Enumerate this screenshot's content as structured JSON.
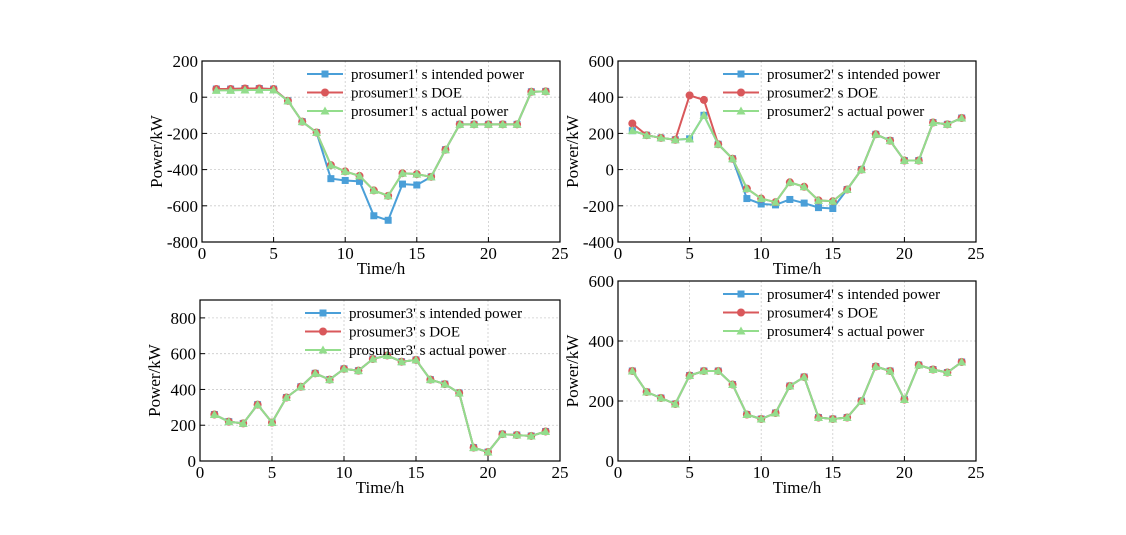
{
  "colors": {
    "intended": "#4a9fd8",
    "doe": "#d9585b",
    "actual": "#93dd8c",
    "grid": "#cccccc",
    "axis": "#000000"
  },
  "chart_data": [
    {
      "type": "line",
      "title": "",
      "xlabel": "Time/h",
      "ylabel": "Power/kW",
      "xlim": [
        0,
        25
      ],
      "ylim": [
        -800,
        200
      ],
      "xticks": [
        0,
        5,
        10,
        15,
        20,
        25
      ],
      "yticks": [
        -800,
        -600,
        -400,
        -200,
        0,
        200
      ],
      "x": [
        1,
        2,
        3,
        4,
        5,
        6,
        7,
        8,
        9,
        10,
        11,
        12,
        13,
        14,
        15,
        16,
        17,
        18,
        19,
        20,
        21,
        22,
        23,
        24
      ],
      "series": [
        {
          "name": "prosumer1' s intended power",
          "marker": "square",
          "color": "intended",
          "values": [
            45,
            45,
            48,
            48,
            45,
            -20,
            -135,
            -195,
            -450,
            -460,
            -465,
            -655,
            -680,
            -480,
            -485,
            -440,
            -290,
            -150,
            -150,
            -150,
            -150,
            -150,
            30,
            32
          ]
        },
        {
          "name": "prosumer1' s DOE",
          "marker": "circle",
          "color": "doe",
          "values": [
            45,
            45,
            48,
            48,
            45,
            -20,
            -135,
            -195,
            -375,
            -410,
            -435,
            -515,
            -545,
            -420,
            -425,
            -440,
            -290,
            -150,
            -150,
            -150,
            -150,
            -150,
            30,
            32
          ]
        },
        {
          "name": "prosumer1' s actual power",
          "marker": "triangle",
          "color": "actual",
          "values": [
            38,
            38,
            40,
            40,
            40,
            -20,
            -135,
            -195,
            -375,
            -410,
            -435,
            -515,
            -545,
            -420,
            -425,
            -440,
            -290,
            -150,
            -150,
            -150,
            -150,
            -150,
            30,
            32
          ]
        }
      ],
      "legend": "top-right"
    },
    {
      "type": "line",
      "title": "",
      "xlabel": "Time/h",
      "ylabel": "Power/kW",
      "xlim": [
        0,
        25
      ],
      "ylim": [
        -400,
        600
      ],
      "xticks": [
        0,
        5,
        10,
        15,
        20,
        25
      ],
      "yticks": [
        -400,
        -200,
        0,
        200,
        400,
        600
      ],
      "x": [
        1,
        2,
        3,
        4,
        5,
        6,
        7,
        8,
        9,
        10,
        11,
        12,
        13,
        14,
        15,
        16,
        17,
        18,
        19,
        20,
        21,
        22,
        23,
        24
      ],
      "series": [
        {
          "name": "prosumer2' s intended power",
          "marker": "square",
          "color": "intended",
          "values": [
            215,
            190,
            175,
            165,
            170,
            300,
            140,
            60,
            -160,
            -190,
            -195,
            -165,
            -185,
            -210,
            -215,
            -110,
            0,
            195,
            160,
            50,
            50,
            260,
            250,
            285
          ]
        },
        {
          "name": "prosumer2' s DOE",
          "marker": "circle",
          "color": "doe",
          "values": [
            255,
            190,
            175,
            165,
            410,
            385,
            140,
            60,
            -105,
            -160,
            -180,
            -70,
            -95,
            -170,
            -175,
            -110,
            0,
            195,
            160,
            50,
            50,
            260,
            250,
            285
          ]
        },
        {
          "name": "prosumer2' s actual power",
          "marker": "triangle",
          "color": "actual",
          "values": [
            215,
            190,
            175,
            165,
            170,
            300,
            140,
            60,
            -105,
            -160,
            -180,
            -70,
            -95,
            -170,
            -175,
            -110,
            0,
            195,
            160,
            50,
            50,
            260,
            250,
            285
          ]
        }
      ],
      "legend": "top-right"
    },
    {
      "type": "line",
      "title": "",
      "xlabel": "Time/h",
      "ylabel": "Power/kW",
      "xlim": [
        0,
        25
      ],
      "ylim": [
        0,
        900
      ],
      "xticks": [
        0,
        5,
        10,
        15,
        20,
        25
      ],
      "yticks": [
        0,
        200,
        400,
        600,
        800
      ],
      "x": [
        1,
        2,
        3,
        4,
        5,
        6,
        7,
        8,
        9,
        10,
        11,
        12,
        13,
        14,
        15,
        16,
        17,
        18,
        19,
        20,
        21,
        22,
        23,
        24
      ],
      "series": [
        {
          "name": "prosumer3' s intended power",
          "marker": "square",
          "color": "intended",
          "values": [
            260,
            220,
            210,
            315,
            215,
            355,
            415,
            490,
            455,
            515,
            505,
            570,
            590,
            555,
            565,
            455,
            430,
            380,
            75,
            50,
            150,
            145,
            140,
            165
          ]
        },
        {
          "name": "prosumer3' s DOE",
          "marker": "circle",
          "color": "doe",
          "values": [
            260,
            220,
            210,
            315,
            215,
            355,
            415,
            490,
            455,
            515,
            505,
            570,
            590,
            555,
            565,
            455,
            430,
            380,
            75,
            50,
            150,
            145,
            140,
            165
          ]
        },
        {
          "name": "prosumer3' s actual power",
          "marker": "triangle",
          "color": "actual",
          "values": [
            260,
            220,
            210,
            315,
            215,
            355,
            415,
            490,
            455,
            515,
            505,
            570,
            590,
            555,
            565,
            455,
            430,
            380,
            75,
            50,
            150,
            145,
            140,
            165
          ]
        }
      ],
      "legend": "top-right"
    },
    {
      "type": "line",
      "title": "",
      "xlabel": "Time/h",
      "ylabel": "Power/kW",
      "xlim": [
        0,
        25
      ],
      "ylim": [
        0,
        600
      ],
      "xticks": [
        0,
        5,
        10,
        15,
        20,
        25
      ],
      "yticks": [
        0,
        200,
        400,
        600
      ],
      "x": [
        1,
        2,
        3,
        4,
        5,
        6,
        7,
        8,
        9,
        10,
        11,
        12,
        13,
        14,
        15,
        16,
        17,
        18,
        19,
        20,
        21,
        22,
        23,
        24
      ],
      "series": [
        {
          "name": "prosumer4' s intended power",
          "marker": "square",
          "color": "intended",
          "values": [
            300,
            230,
            210,
            190,
            285,
            300,
            300,
            255,
            155,
            140,
            160,
            250,
            280,
            145,
            140,
            145,
            200,
            315,
            300,
            205,
            320,
            305,
            295,
            330
          ]
        },
        {
          "name": "prosumer4' s DOE",
          "marker": "circle",
          "color": "doe",
          "values": [
            300,
            230,
            210,
            190,
            285,
            300,
            300,
            255,
            155,
            140,
            160,
            250,
            280,
            145,
            140,
            145,
            200,
            315,
            300,
            205,
            320,
            305,
            295,
            330
          ]
        },
        {
          "name": "prosumer4' s actual power",
          "marker": "triangle",
          "color": "actual",
          "values": [
            300,
            230,
            210,
            190,
            285,
            300,
            300,
            255,
            155,
            140,
            160,
            250,
            280,
            145,
            140,
            145,
            200,
            315,
            300,
            205,
            320,
            305,
            295,
            330
          ]
        }
      ],
      "legend": "top-right"
    }
  ]
}
